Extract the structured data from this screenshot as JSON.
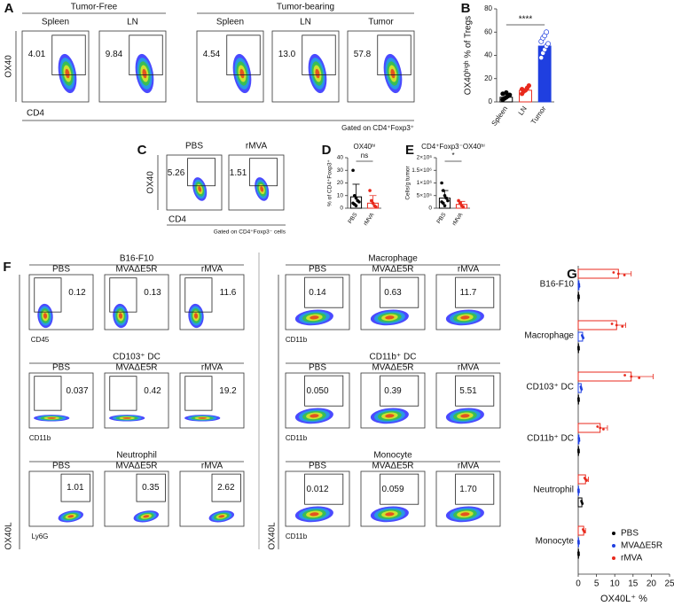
{
  "figure": {
    "A": {
      "label": "A",
      "groups": [
        {
          "title": "Tumor-Free",
          "plots": [
            {
              "title": "Spleen",
              "gate": "4.01"
            },
            {
              "title": "LN",
              "gate": "9.84"
            }
          ]
        },
        {
          "title": "Tumor-bearing",
          "plots": [
            {
              "title": "Spleen",
              "gate": "4.54"
            },
            {
              "title": "LN",
              "gate": "13.0"
            },
            {
              "title": "Tumor",
              "gate": "57.8"
            }
          ]
        }
      ],
      "y_label": "OX40",
      "x_label": "CD4",
      "note": "Gated on CD4⁺Foxp3⁺"
    },
    "C": {
      "label": "C",
      "plots": [
        {
          "title": "PBS",
          "gate": "5.26"
        },
        {
          "title": "rMVA",
          "gate": "1.51"
        }
      ],
      "y_label": "OX40",
      "x_label": "CD4",
      "note": "Gated on CD4⁺Foxp3⁻ cells"
    },
    "F": {
      "label": "F",
      "y_label": "OX40L",
      "blocks": [
        {
          "title": "B16-F10",
          "x_label": "CD45",
          "plots": [
            {
              "title": "PBS",
              "gate": "0.12"
            },
            {
              "title": "MVAΔE5R",
              "gate": "0.13"
            },
            {
              "title": "rMVA",
              "gate": "11.6"
            }
          ]
        },
        {
          "title": "CD103⁺ DC",
          "x_label": "CD11b",
          "plots": [
            {
              "title": "PBS",
              "gate": "0.037"
            },
            {
              "title": "MVAΔE5R",
              "gate": "0.42"
            },
            {
              "title": "rMVA",
              "gate": "19.2"
            }
          ]
        },
        {
          "title": "Neutrophil",
          "x_label": "Ly6G",
          "plots": [
            {
              "title": "PBS",
              "gate": "1.01"
            },
            {
              "title": "MVAΔE5R",
              "gate": "0.35"
            },
            {
              "title": "rMVA",
              "gate": "2.62"
            }
          ]
        },
        {
          "title": "Macrophage",
          "x_label": "CD11b",
          "plots": [
            {
              "title": "PBS",
              "gate": "0.14"
            },
            {
              "title": "MVAΔE5R",
              "gate": "0.63"
            },
            {
              "title": "rMVA",
              "gate": "11.7"
            }
          ]
        },
        {
          "title": "CD11b⁺ DC",
          "x_label": "CD11b",
          "plots": [
            {
              "title": "PBS",
              "gate": "0.050"
            },
            {
              "title": "MVAΔE5R",
              "gate": "0.39"
            },
            {
              "title": "rMVA",
              "gate": "5.51"
            }
          ]
        },
        {
          "title": "Monocyte",
          "x_label": "CD11b",
          "plots": [
            {
              "title": "PBS",
              "gate": "0.012"
            },
            {
              "title": "MVAΔE5R",
              "gate": "0.059"
            },
            {
              "title": "rMVA",
              "gate": "1.70"
            }
          ]
        }
      ]
    }
  },
  "chart_data": [
    {
      "type": "bar",
      "panel_label": "B",
      "y_label": "OX40ʰⁱᵍʰ % of Tregs",
      "categories": [
        "Spleen",
        "LN",
        "Tumor"
      ],
      "values": [
        4,
        10,
        48
      ],
      "colors": [
        "#000000",
        "#e8291c",
        "#1f3fe0"
      ],
      "filled": [
        false,
        false,
        true
      ],
      "points": [
        [
          2,
          3,
          4,
          5,
          6,
          7,
          3,
          8
        ],
        [
          7,
          9,
          10,
          12,
          14,
          11
        ],
        [
          38,
          42,
          45,
          48,
          50,
          52,
          55,
          57,
          60
        ]
      ],
      "ylim": [
        0,
        80
      ],
      "yticks": [
        0,
        20,
        40,
        60,
        80
      ],
      "annotation": "****"
    },
    {
      "type": "bar",
      "panel_label": "D",
      "title": "OX40ʰⁱ",
      "y_label": "% of CD4⁺Foxp3⁺",
      "categories": [
        "PBS",
        "rMVA"
      ],
      "values": [
        9,
        4
      ],
      "errors": [
        10,
        6
      ],
      "colors": [
        "#000000",
        "#e8291c"
      ],
      "filled": [
        false,
        false
      ],
      "points": [
        [
          30,
          10,
          8,
          6,
          5,
          4,
          3,
          2
        ],
        [
          14,
          6,
          4,
          2,
          1
        ]
      ],
      "ylim": [
        0,
        40
      ],
      "yticks": [
        0,
        10,
        20,
        30,
        40
      ],
      "annotation": "ns"
    },
    {
      "type": "bar",
      "panel_label": "E",
      "title": "CD4⁺Foxp3⁻OX40ʰⁱ",
      "y_label": "Cells/g tumor",
      "categories": [
        "PBS",
        "rMVA"
      ],
      "values": [
        400000,
        150000
      ],
      "errors": [
        300000,
        120000
      ],
      "colors": [
        "#000000",
        "#e8291c"
      ],
      "filled": [
        false,
        false
      ],
      "points": [
        [
          1000000,
          700000,
          500000,
          400000,
          300000,
          250000,
          200000,
          100000
        ],
        [
          300000,
          200000,
          100000,
          50000
        ]
      ],
      "ylim": [
        0,
        2000000
      ],
      "yticks": [
        0,
        {
          "value": 500000,
          "label": "5×10⁵"
        },
        {
          "value": 1000000,
          "label": "1×10⁶"
        },
        {
          "value": 1500000,
          "label": "1.5×10⁶"
        },
        {
          "value": 2000000,
          "label": "2×10⁶"
        }
      ],
      "annotation": "*"
    },
    {
      "type": "hbar",
      "panel_label": "G",
      "x_label": "OX40L⁺ %",
      "categories": [
        "B16-F10",
        "Macrophage",
        "CD103⁺ DC",
        "CD11b⁺ DC",
        "Neutrophil",
        "Monocyte"
      ],
      "series": [
        {
          "name": "PBS",
          "color": "#000000",
          "values": [
            0.1,
            0.1,
            0.1,
            0.1,
            1,
            0.1
          ]
        },
        {
          "name": "MVAΔE5R",
          "color": "#1f3fe0",
          "values": [
            0.2,
            1.2,
            0.8,
            0.2,
            0.1,
            0.1
          ]
        },
        {
          "name": "rMVA",
          "color": "#e8291c",
          "values": [
            11,
            10.5,
            14.5,
            6,
            2,
            1.5
          ],
          "errors": [
            3.5,
            2.5,
            6,
            2,
            0.8,
            0.5
          ]
        }
      ],
      "xlim": [
        0,
        25
      ],
      "xticks": [
        0,
        5,
        10,
        15,
        20,
        25
      ],
      "legend": "lower right"
    }
  ]
}
